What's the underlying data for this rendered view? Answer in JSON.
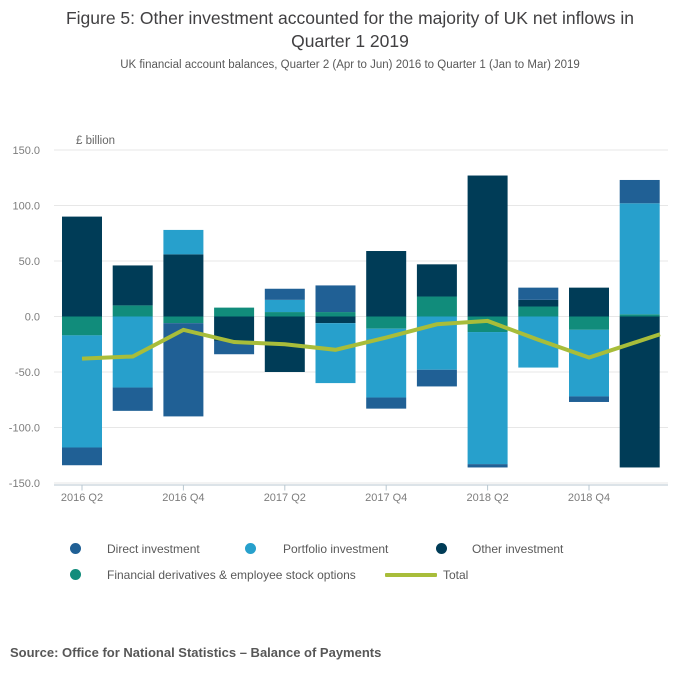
{
  "header": {
    "title": "Figure 5: Other investment accounted for the majority of UK net inflows in Quarter 1 2019",
    "subtitle": "UK financial account balances, Quarter 2 (Apr to Jun) 2016 to Quarter 1 (Jan to Mar) 2019"
  },
  "chart_data": {
    "type": "bar",
    "subtype": "stacked-bars-with-total-line",
    "title": "Figure 5: Other investment accounted for the majority of UK net inflows in Quarter 1 2019",
    "unit_label": "£ billion",
    "categories": [
      "2016 Q2",
      "2016 Q3",
      "2016 Q4",
      "2017 Q1",
      "2017 Q2",
      "2017 Q3",
      "2017 Q4",
      "2018 Q1",
      "2018 Q2",
      "2018 Q3",
      "2018 Q4",
      "2019 Q1"
    ],
    "x_axis_tick_labels": [
      "2016 Q2",
      "2016 Q4",
      "2017 Q2",
      "2017 Q4",
      "2018 Q2",
      "2018 Q4"
    ],
    "ylim": [
      -150,
      150
    ],
    "yticks": [
      150,
      100,
      50,
      0,
      -50,
      -100,
      -150
    ],
    "ytick_labels": [
      "150.0",
      "100.0",
      "50.0",
      "0.0",
      "-50.0",
      "-100.0",
      "-150.0"
    ],
    "grid": true,
    "legend_position": "bottom",
    "series": [
      {
        "name": "Direct investment",
        "type": "bar",
        "color": "#206095",
        "values": [
          -16,
          -21,
          -84,
          -12,
          10,
          24,
          -10,
          -15,
          -3,
          11,
          -5,
          21
        ]
      },
      {
        "name": "Portfolio investment",
        "type": "bar",
        "color": "#27A0CC",
        "values": [
          -101,
          -64,
          22,
          0,
          11,
          -54,
          -62,
          -48,
          -119,
          -46,
          -60,
          100
        ]
      },
      {
        "name": "Other investment",
        "type": "bar",
        "color": "#003C57",
        "values": [
          90,
          36,
          56,
          -22,
          -50,
          -6,
          59,
          29,
          127,
          6,
          26,
          -136
        ]
      },
      {
        "name": "Financial derivatives & employee stock options",
        "type": "bar",
        "color": "#118C7B",
        "values": [
          -17,
          10,
          -6,
          8,
          4,
          4,
          -11,
          18,
          -14,
          9,
          -12,
          2
        ]
      },
      {
        "name": "Total",
        "type": "line",
        "color": "#A8BD3A",
        "values": [
          -38,
          -36,
          -12,
          -23,
          -25,
          -30,
          -19,
          -7,
          -4,
          -21,
          -37,
          -16
        ]
      }
    ],
    "stack_order": [
      3,
      2,
      1,
      0
    ],
    "colors": {
      "gridline": "#E7E7E7",
      "axis_line": "#B8C7D0",
      "tick_label": "#7D7D7D"
    }
  },
  "legend": {
    "rows": [
      [
        {
          "label": "Direct investment",
          "swatch": "circle",
          "color": "#206095"
        },
        {
          "label": "Portfolio investment",
          "swatch": "circle",
          "color": "#27A0CC"
        },
        {
          "label": "Other investment",
          "swatch": "circle",
          "color": "#003C57"
        }
      ],
      [
        {
          "label": "Financial derivatives & employee stock options",
          "swatch": "circle",
          "color": "#118C7B"
        },
        {
          "label": "Total",
          "swatch": "line",
          "color": "#A8BD3A"
        }
      ]
    ]
  },
  "footer": {
    "source": "Source: Office for National Statistics – Balance of Payments"
  }
}
